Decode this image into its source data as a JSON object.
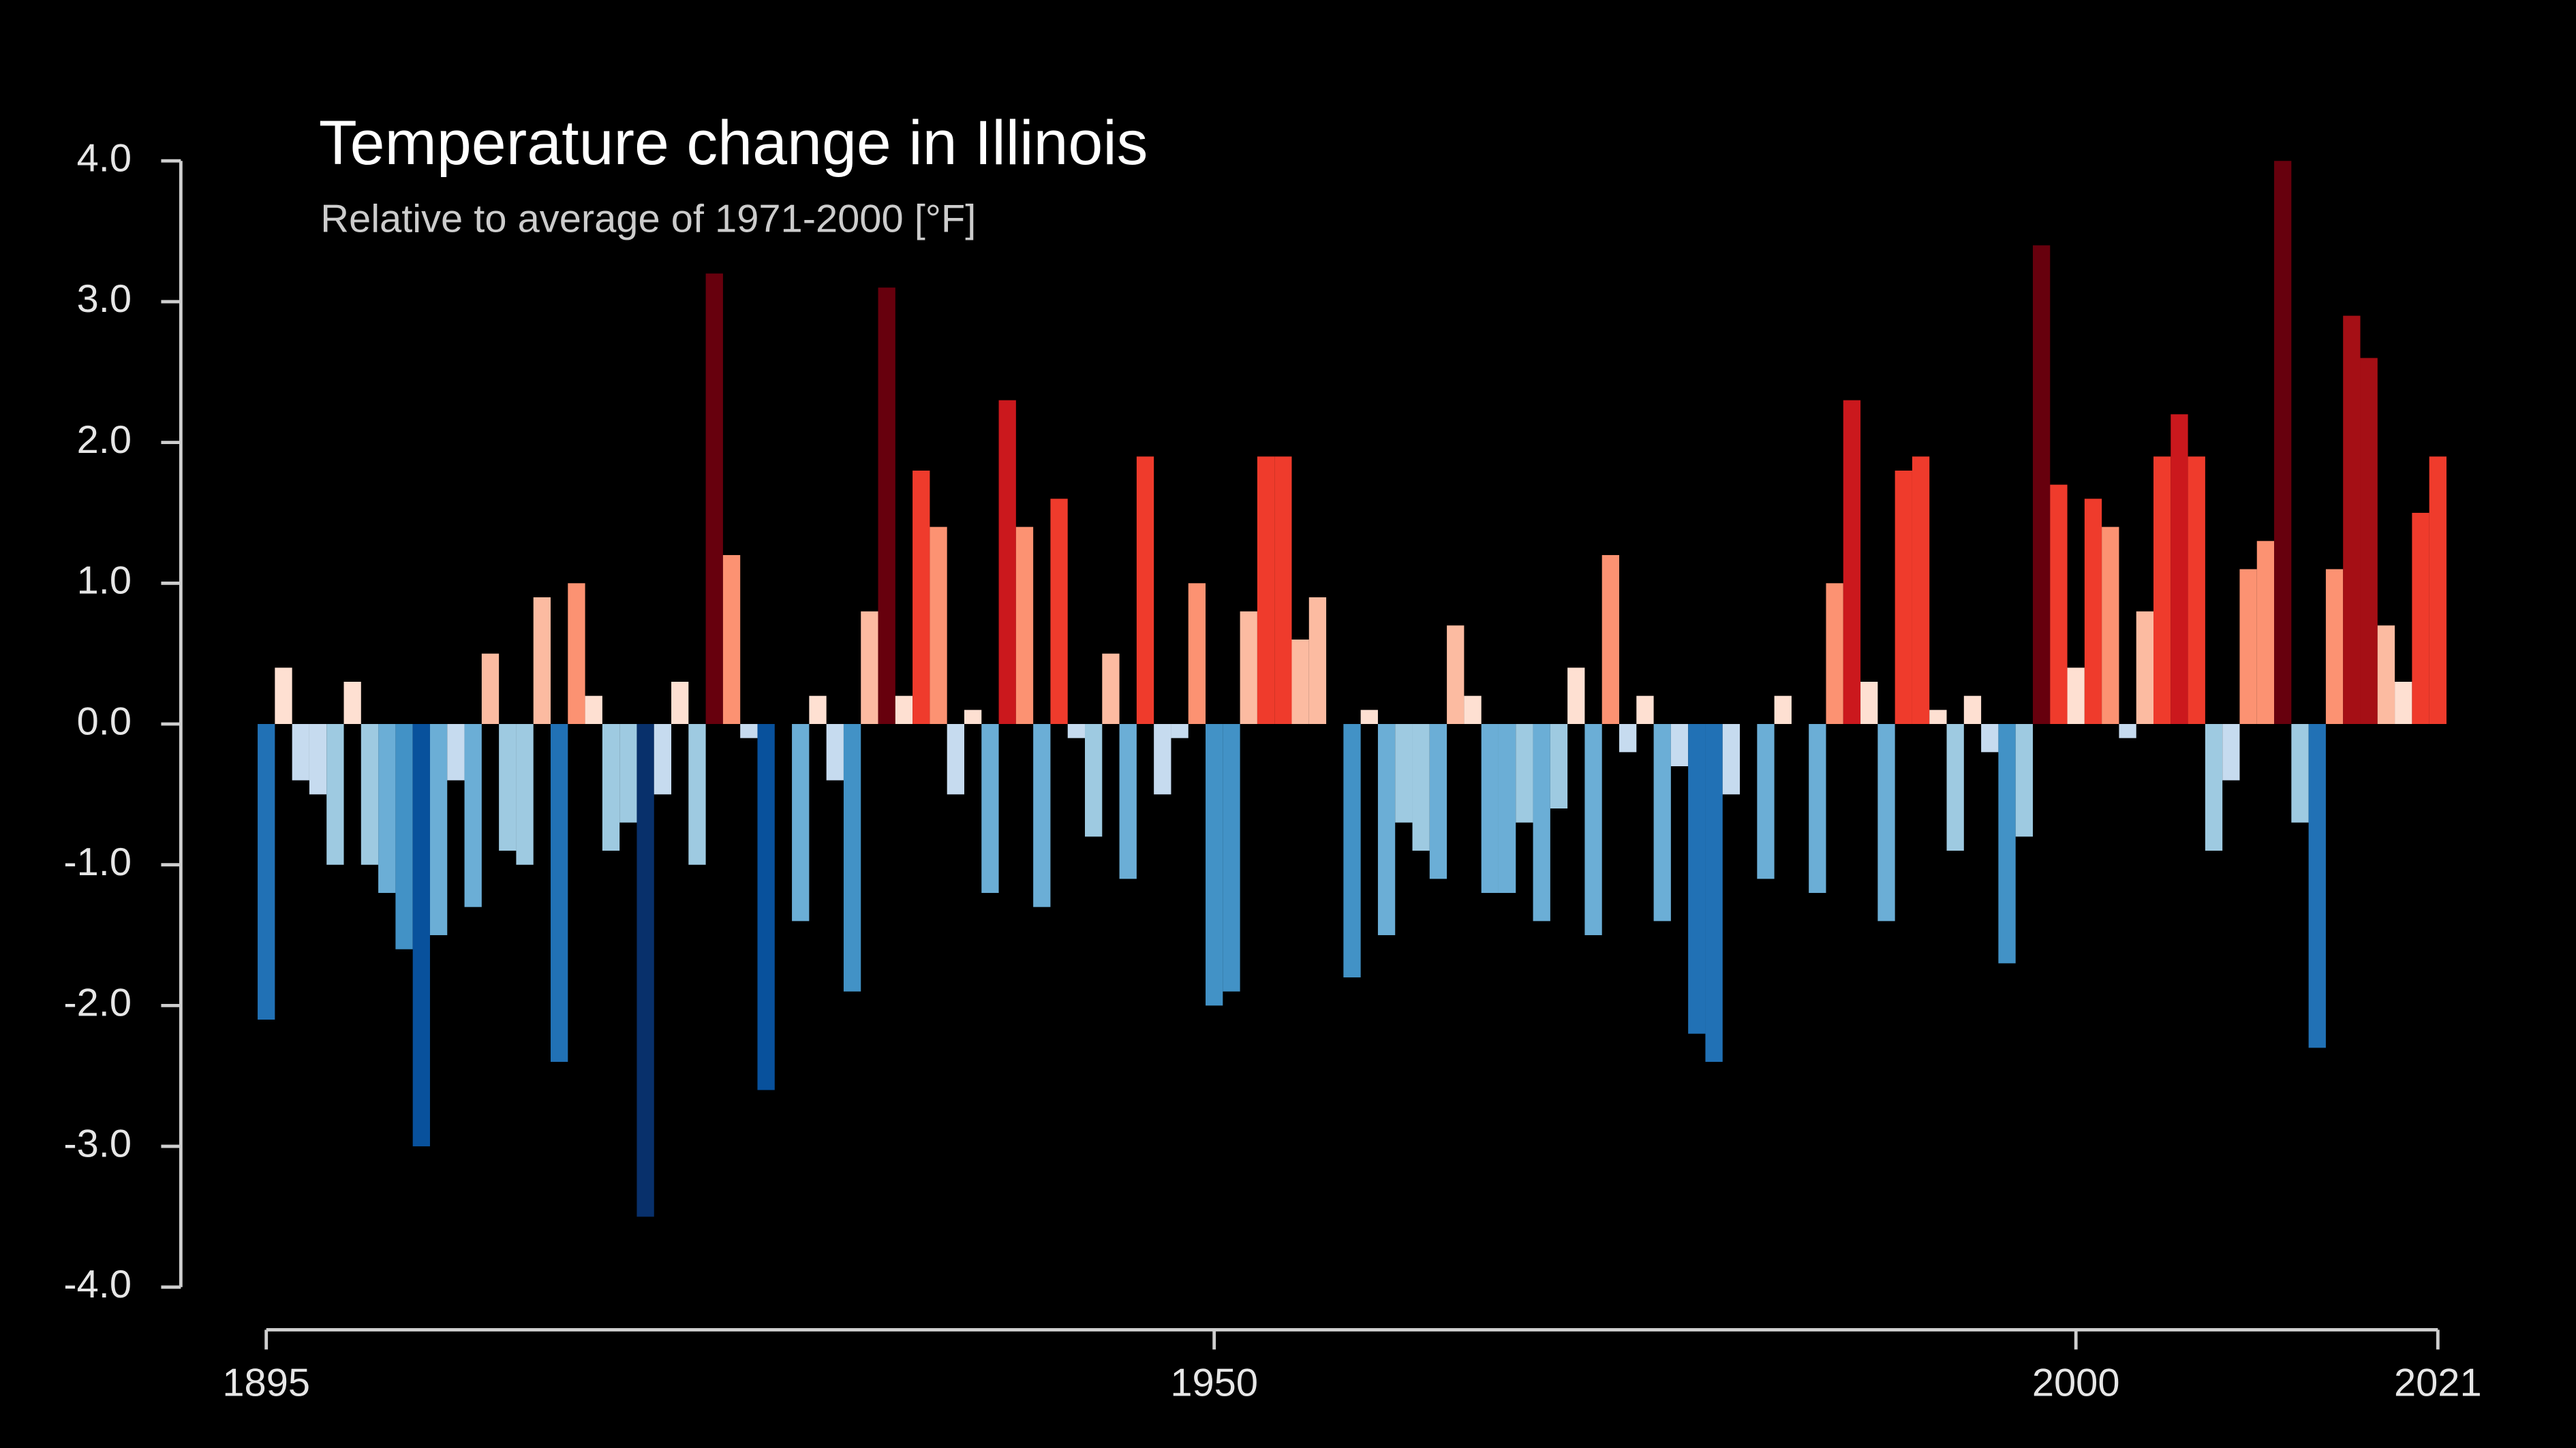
{
  "chart_data": {
    "type": "bar",
    "title": "Temperature change in Illinois",
    "subtitle": "Relative to average of 1971-2000  [°F]",
    "x": [
      1895,
      1896,
      1897,
      1898,
      1899,
      1900,
      1901,
      1902,
      1903,
      1904,
      1905,
      1906,
      1907,
      1908,
      1909,
      1910,
      1911,
      1912,
      1913,
      1914,
      1915,
      1916,
      1917,
      1918,
      1919,
      1920,
      1921,
      1922,
      1923,
      1924,
      1925,
      1926,
      1927,
      1928,
      1929,
      1930,
      1931,
      1932,
      1933,
      1934,
      1935,
      1936,
      1937,
      1938,
      1939,
      1940,
      1941,
      1942,
      1943,
      1944,
      1945,
      1946,
      1947,
      1948,
      1949,
      1950,
      1951,
      1952,
      1953,
      1954,
      1955,
      1956,
      1957,
      1958,
      1959,
      1960,
      1961,
      1962,
      1963,
      1964,
      1965,
      1966,
      1967,
      1968,
      1969,
      1970,
      1971,
      1972,
      1973,
      1974,
      1975,
      1976,
      1977,
      1978,
      1979,
      1980,
      1981,
      1982,
      1983,
      1984,
      1985,
      1986,
      1987,
      1988,
      1989,
      1990,
      1991,
      1992,
      1993,
      1994,
      1995,
      1996,
      1997,
      1998,
      1999,
      2000,
      2001,
      2002,
      2003,
      2004,
      2005,
      2006,
      2007,
      2008,
      2009,
      2010,
      2011,
      2012,
      2013,
      2014,
      2015,
      2016,
      2017,
      2018,
      2019,
      2020,
      2021
    ],
    "values": [
      -2.1,
      0.4,
      -0.4,
      -0.5,
      -1.0,
      0.3,
      -1.0,
      -1.2,
      -1.6,
      -3.0,
      -1.5,
      -0.4,
      -1.3,
      0.5,
      -0.9,
      -1.0,
      0.9,
      -2.4,
      1.0,
      0.2,
      -0.9,
      -0.7,
      -3.5,
      -0.5,
      0.3,
      -1.0,
      3.2,
      1.2,
      -0.1,
      -2.6,
      0.0,
      -1.4,
      0.2,
      -0.4,
      -1.9,
      0.8,
      3.1,
      0.2,
      1.8,
      1.4,
      -0.5,
      0.1,
      -1.2,
      2.3,
      1.4,
      -1.3,
      1.6,
      -0.1,
      -0.8,
      0.5,
      -1.1,
      1.9,
      -0.5,
      -0.1,
      1.0,
      -2.0,
      -1.9,
      0.8,
      1.9,
      1.9,
      0.6,
      0.9,
      0.0,
      -1.8,
      0.1,
      -1.5,
      -0.7,
      -0.9,
      -1.1,
      0.7,
      0.2,
      -1.2,
      -1.2,
      -0.7,
      -1.4,
      -0.6,
      0.4,
      -1.5,
      1.2,
      -0.2,
      0.2,
      -1.4,
      -0.3,
      -2.2,
      -2.4,
      -0.5,
      0.0,
      -1.1,
      0.2,
      0.0,
      -1.2,
      1.0,
      2.3,
      0.3,
      -1.4,
      1.8,
      1.9,
      0.1,
      -0.9,
      0.2,
      -0.2,
      -1.7,
      -0.8,
      3.4,
      1.7,
      0.4,
      1.6,
      1.4,
      -0.1,
      0.8,
      1.9,
      2.2,
      1.9,
      -0.9,
      -0.4,
      1.1,
      1.3,
      4.0,
      -0.7,
      -2.3,
      1.1,
      2.9,
      2.6,
      0.7,
      0.3,
      1.5,
      1.9
    ],
    "palette": [
      "#08306b",
      "#08306b",
      "#08519c",
      "#2171b5",
      "#4292c6",
      "#6baed6",
      "#9ecae1",
      "#c6dbef",
      "#fee0d2",
      "#fcbba1",
      "#fc9272",
      "#ef3b2c",
      "#cb181d",
      "#a50f15",
      "#67000d",
      "#67000d"
    ],
    "xlim": [
      1895,
      2021
    ],
    "xticks": [
      1895,
      1950,
      2000,
      2021
    ],
    "ylim": [
      -4,
      4
    ],
    "yticks": [
      {
        "value": 4,
        "label": "4.0"
      },
      {
        "value": 3,
        "label": "3.0"
      },
      {
        "value": 2,
        "label": "2.0"
      },
      {
        "value": 1,
        "label": "1.0"
      },
      {
        "value": 0,
        "label": "0.0"
      },
      {
        "value": -1,
        "label": "-1.0"
      },
      {
        "value": -2,
        "label": "-2.0"
      },
      {
        "value": -3,
        "label": "-3.0"
      },
      {
        "value": -4,
        "label": "-4.0"
      }
    ]
  }
}
